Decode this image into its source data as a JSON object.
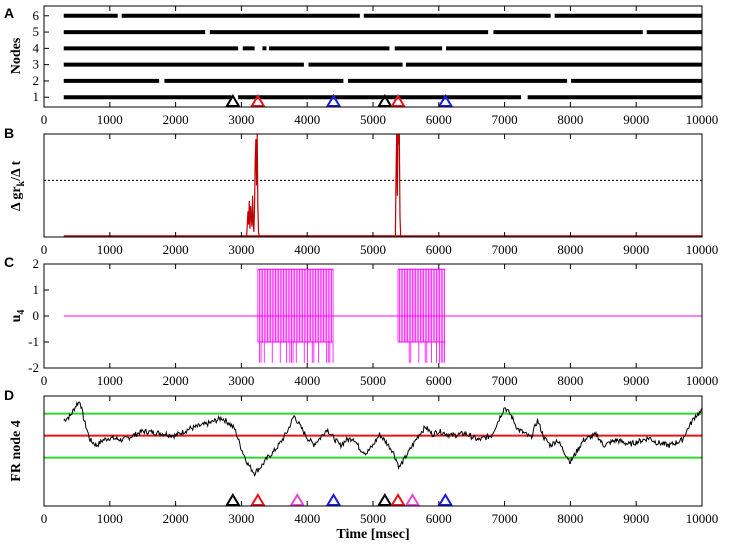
{
  "chart_data": [
    {
      "panel": "A",
      "type": "scatter",
      "ylabel": "Nodes",
      "xlim": [
        0,
        10000
      ],
      "ylim": [
        0.4,
        6.6
      ],
      "x_ticks": [
        0,
        1000,
        2000,
        3000,
        4000,
        5000,
        6000,
        7000,
        8000,
        9000,
        10000
      ],
      "y_ticks": [
        1,
        2,
        3,
        4,
        5,
        6
      ],
      "raster_range": [
        300,
        10000
      ],
      "rows": [
        {
          "node": 1,
          "gaps": [
            [
              2850,
              2950
            ],
            [
              7250,
              7350
            ]
          ]
        },
        {
          "node": 2,
          "gaps": [
            [
              1750,
              1830
            ],
            [
              4550,
              4620
            ],
            [
              7950,
              8010
            ]
          ]
        },
        {
          "node": 3,
          "gaps": [
            [
              3950,
              4020
            ],
            [
              5450,
              5500
            ]
          ]
        },
        {
          "node": 4,
          "gaps": [
            [
              2950,
              3020
            ],
            [
              3200,
              3320
            ],
            [
              3380,
              3420
            ],
            [
              5250,
              5330
            ],
            [
              6050,
              6110
            ]
          ]
        },
        {
          "node": 5,
          "gaps": [
            [
              2450,
              2520
            ],
            [
              6750,
              6830
            ],
            [
              9100,
              9160
            ]
          ]
        },
        {
          "node": 6,
          "gaps": [
            [
              1120,
              1180
            ],
            [
              4800,
              4860
            ],
            [
              7700,
              7760
            ]
          ]
        }
      ],
      "markers": [
        {
          "x": 2870,
          "color": "#000000"
        },
        {
          "x": 3250,
          "color": "#e8141c"
        },
        {
          "x": 4400,
          "color": "#1a1ad8"
        },
        {
          "x": 5180,
          "color": "#000000"
        },
        {
          "x": 5380,
          "color": "#e8141c"
        },
        {
          "x": 6100,
          "color": "#1a1ad8"
        }
      ]
    },
    {
      "panel": "B",
      "type": "line",
      "ylabel": "Δ gr_k / Δ t",
      "ylabel_parts": [
        "Δ gr",
        "k",
        "/Δ t"
      ],
      "xlim": [
        0,
        10000
      ],
      "ylim": [
        0,
        1
      ],
      "threshold": 0.55,
      "line_color": "#c00000",
      "threshold_color": "#000000",
      "x_ticks": [
        0,
        1000,
        2000,
        3000,
        4000,
        5000,
        6000,
        7000,
        8000,
        9000,
        10000
      ],
      "baseline_range": [
        300,
        10000
      ],
      "x": [
        3080,
        3100,
        3110,
        3120,
        3130,
        3140,
        3150,
        3160,
        3170,
        3180,
        3190,
        3200,
        3210,
        3220,
        3230,
        3240,
        3250,
        3260,
        3270,
        5340,
        5350,
        5360,
        5370,
        5380,
        5390,
        5400,
        5410,
        5420
      ],
      "y": [
        0,
        0.25,
        0.12,
        0.35,
        0.08,
        0.3,
        0.2,
        0.1,
        0.4,
        0.15,
        0.05,
        0.3,
        0.75,
        0.95,
        0.5,
        1.0,
        0.3,
        0.05,
        0,
        0,
        0.6,
        1.0,
        0.4,
        1.0,
        0.9,
        1.0,
        0.2,
        0
      ]
    },
    {
      "panel": "C",
      "type": "line",
      "ylabel": "u_4",
      "ylabel_parts": [
        "u",
        "4"
      ],
      "xlim": [
        0,
        10000
      ],
      "ylim": [
        -2,
        2
      ],
      "x_ticks": [
        0,
        1000,
        2000,
        3000,
        4000,
        5000,
        6000,
        7000,
        8000,
        9000,
        10000
      ],
      "y_ticks": [
        -2,
        -1,
        0,
        1,
        2
      ],
      "line_color": "#ff00ff",
      "baseline": 0,
      "baseline_range": [
        300,
        10000
      ],
      "active_windows": [
        [
          3250,
          4400
        ],
        [
          5380,
          6100
        ]
      ],
      "amplitude": [
        -1.8,
        1.8
      ]
    },
    {
      "panel": "D",
      "type": "line",
      "ylabel": "FR node 4",
      "xlabel": "Time [msec]",
      "xlim": [
        0,
        10000
      ],
      "ylim": [
        0,
        1
      ],
      "x_ticks": [
        0,
        1000,
        2000,
        3000,
        4000,
        5000,
        6000,
        7000,
        8000,
        9000,
        10000
      ],
      "line_color": "#000000",
      "hlines": [
        {
          "y": 0.84,
          "color": "#2fd62f"
        },
        {
          "y": 0.64,
          "color": "#e8141c"
        },
        {
          "y": 0.44,
          "color": "#2fd62f"
        }
      ],
      "x": [
        300,
        400,
        500,
        550,
        600,
        700,
        800,
        900,
        1000,
        1200,
        1500,
        1800,
        2000,
        2200,
        2500,
        2700,
        2800,
        2900,
        3000,
        3100,
        3200,
        3300,
        3400,
        3500,
        3600,
        3700,
        3800,
        3900,
        4000,
        4100,
        4200,
        4300,
        4400,
        4500,
        4600,
        4700,
        4800,
        4900,
        5000,
        5100,
        5200,
        5300,
        5400,
        5500,
        5600,
        5700,
        5800,
        5900,
        6000,
        6200,
        6400,
        6600,
        6800,
        7000,
        7100,
        7200,
        7300,
        7400,
        7500,
        7600,
        7700,
        7800,
        7900,
        8000,
        8200,
        8400,
        8500,
        8700,
        8900,
        9000,
        9200,
        9300,
        9500,
        9700,
        9800,
        9900,
        10000
      ],
      "y": [
        0.78,
        0.82,
        0.93,
        0.95,
        0.8,
        0.6,
        0.55,
        0.6,
        0.62,
        0.6,
        0.68,
        0.66,
        0.64,
        0.7,
        0.75,
        0.8,
        0.76,
        0.7,
        0.52,
        0.38,
        0.3,
        0.36,
        0.44,
        0.5,
        0.58,
        0.68,
        0.82,
        0.72,
        0.62,
        0.56,
        0.62,
        0.7,
        0.62,
        0.55,
        0.6,
        0.62,
        0.52,
        0.48,
        0.55,
        0.65,
        0.58,
        0.5,
        0.35,
        0.45,
        0.55,
        0.65,
        0.72,
        0.65,
        0.68,
        0.64,
        0.66,
        0.6,
        0.64,
        0.9,
        0.82,
        0.7,
        0.66,
        0.62,
        0.78,
        0.62,
        0.55,
        0.6,
        0.5,
        0.4,
        0.6,
        0.65,
        0.55,
        0.6,
        0.56,
        0.58,
        0.62,
        0.58,
        0.55,
        0.6,
        0.72,
        0.82,
        0.86
      ],
      "markers": [
        {
          "x": 2870,
          "color": "#000000"
        },
        {
          "x": 3250,
          "color": "#e8141c"
        },
        {
          "x": 3850,
          "color": "#e64ad8"
        },
        {
          "x": 4400,
          "color": "#1a1ad8"
        },
        {
          "x": 5180,
          "color": "#000000"
        },
        {
          "x": 5380,
          "color": "#e8141c"
        },
        {
          "x": 5600,
          "color": "#e64ad8"
        },
        {
          "x": 6100,
          "color": "#1a1ad8"
        }
      ]
    }
  ]
}
